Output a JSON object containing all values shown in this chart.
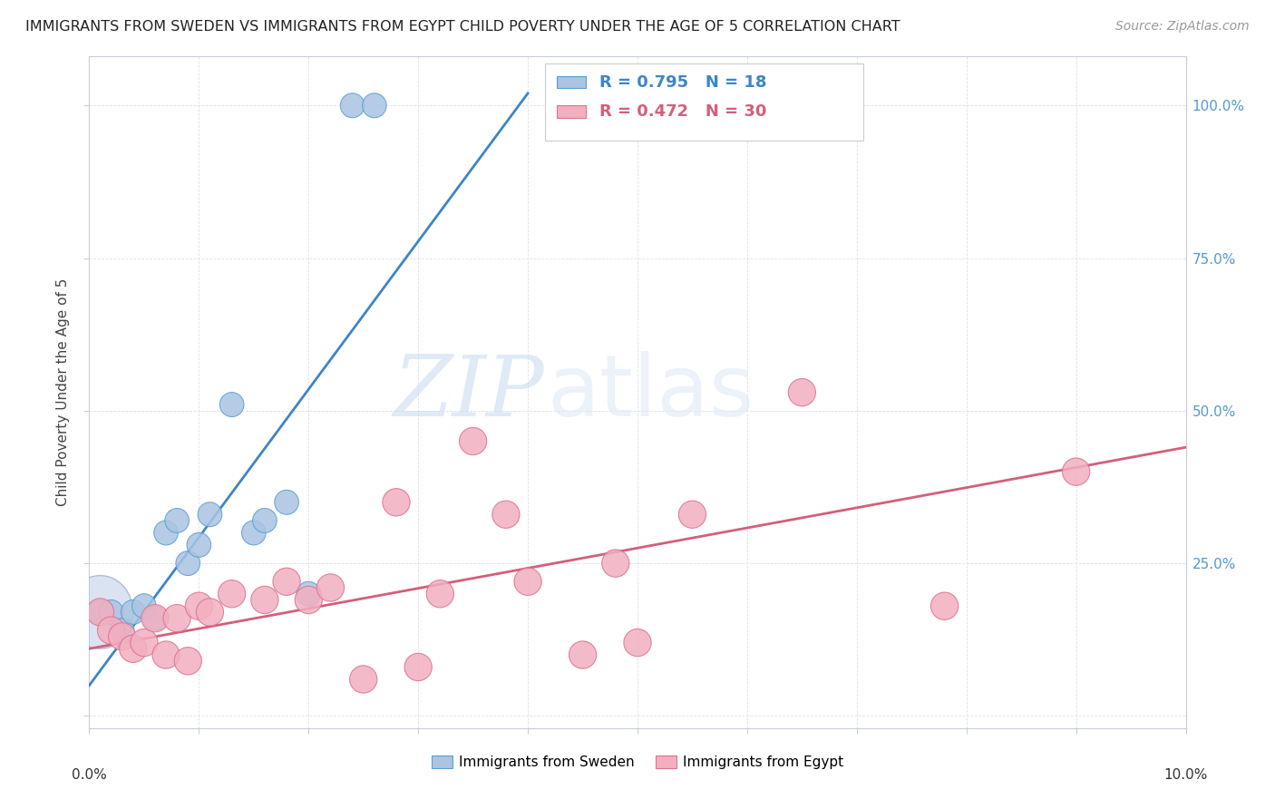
{
  "title": "IMMIGRANTS FROM SWEDEN VS IMMIGRANTS FROM EGYPT CHILD POVERTY UNDER THE AGE OF 5 CORRELATION CHART",
  "source": "Source: ZipAtlas.com",
  "ylabel": "Child Poverty Under the Age of 5",
  "xlim": [
    0.0,
    0.1
  ],
  "ylim": [
    -0.02,
    1.08
  ],
  "legend_sweden": "Immigrants from Sweden",
  "legend_egypt": "Immigrants from Egypt",
  "R_sweden": "0.795",
  "N_sweden": "18",
  "R_egypt": "0.472",
  "N_egypt": "30",
  "watermark_zip": "ZIP",
  "watermark_atlas": "atlas",
  "sweden_color": "#aac4e2",
  "egypt_color": "#f2afc0",
  "sweden_line_color": "#3d85c8",
  "egypt_line_color": "#d45f7a",
  "sweden_edge_color": "#5a9fd4",
  "egypt_edge_color": "#e07090",
  "sweden_x": [
    0.001,
    0.002,
    0.003,
    0.004,
    0.005,
    0.006,
    0.007,
    0.008,
    0.009,
    0.01,
    0.011,
    0.013,
    0.015,
    0.016,
    0.018,
    0.02,
    0.024,
    0.026
  ],
  "sweden_y": [
    0.17,
    0.17,
    0.14,
    0.17,
    0.18,
    0.16,
    0.3,
    0.32,
    0.25,
    0.28,
    0.33,
    0.51,
    0.3,
    0.32,
    0.35,
    0.2,
    1.0,
    1.0
  ],
  "egypt_x": [
    0.001,
    0.002,
    0.003,
    0.004,
    0.005,
    0.006,
    0.007,
    0.008,
    0.009,
    0.01,
    0.011,
    0.013,
    0.016,
    0.018,
    0.02,
    0.022,
    0.025,
    0.028,
    0.03,
    0.032,
    0.035,
    0.038,
    0.04,
    0.045,
    0.048,
    0.05,
    0.055,
    0.065,
    0.078,
    0.09
  ],
  "egypt_y": [
    0.17,
    0.14,
    0.13,
    0.11,
    0.12,
    0.16,
    0.1,
    0.16,
    0.09,
    0.18,
    0.17,
    0.2,
    0.19,
    0.22,
    0.19,
    0.21,
    0.06,
    0.35,
    0.08,
    0.2,
    0.45,
    0.33,
    0.22,
    0.1,
    0.25,
    0.12,
    0.33,
    0.53,
    0.18,
    0.4
  ],
  "sweden_line_x": [
    0.0,
    0.04
  ],
  "sweden_line_y": [
    0.05,
    1.02
  ],
  "egypt_line_x": [
    0.0,
    0.1
  ],
  "egypt_line_y": [
    0.11,
    0.44
  ],
  "ytick_positions": [
    0.0,
    0.25,
    0.5,
    0.75,
    1.0
  ],
  "ytick_labels_right": [
    "",
    "25.0%",
    "50.0%",
    "75.0%",
    "100.0%"
  ],
  "xtick_positions": [
    0.0,
    0.01,
    0.02,
    0.03,
    0.04,
    0.05,
    0.06,
    0.07,
    0.08,
    0.09,
    0.1
  ],
  "grid_color": "#d8dfe8",
  "spine_color": "#c8cdd5",
  "title_fontsize": 11.5,
  "source_fontsize": 10,
  "axis_label_fontsize": 11,
  "tick_label_fontsize": 11,
  "legend_fontsize": 12,
  "r_n_fontsize": 13
}
